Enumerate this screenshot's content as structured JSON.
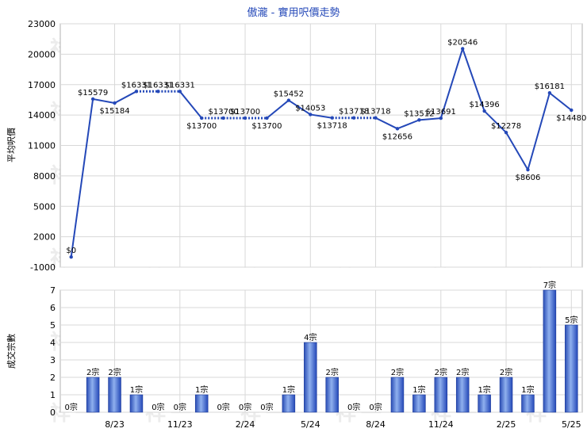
{
  "chart_data": [
    {
      "type": "line",
      "title": "傲瀧 - 實用呎價走勢",
      "ylabel": "平均呎價",
      "ylim": [
        -1000,
        23000
      ],
      "yticks": [
        -1000,
        2000,
        5000,
        8000,
        11000,
        14000,
        17000,
        20000,
        23000
      ],
      "grid": true,
      "series": [
        {
          "color": "#2448b8",
          "values": [
            0,
            15579,
            15184,
            16331,
            16331,
            16331,
            13700,
            13700,
            13700,
            13700,
            15452,
            14053,
            13718,
            13718,
            13718,
            12656,
            13512,
            13691,
            20546,
            14396,
            12278,
            8606,
            16181,
            14480
          ],
          "labels": [
            "$0",
            "$15579",
            "$15184",
            "$16331",
            "$16331",
            "$16331",
            "$13700",
            "$13700",
            "$13700",
            "$13700",
            "$15452",
            "$14053",
            "$13718",
            "$13718",
            "$13718",
            "$12656",
            "$13512",
            "$13691",
            "$20546",
            "$14396",
            "$12278",
            "$8606",
            "$16181",
            "$14480"
          ],
          "dotted": [
            false,
            false,
            false,
            true,
            true,
            false,
            true,
            true,
            true,
            false,
            false,
            false,
            true,
            true,
            false,
            false,
            false,
            false,
            false,
            false,
            false,
            false,
            false,
            false
          ]
        }
      ]
    },
    {
      "type": "bar",
      "ylabel": "成交宗數",
      "ylim": [
        0,
        7
      ],
      "yticks": [
        0,
        1,
        2,
        3,
        4,
        5,
        6,
        7
      ],
      "categories": [
        "8/23",
        "11/23",
        "2/24",
        "5/24",
        "8/24",
        "11/24",
        "2/25",
        "5/25"
      ],
      "values": [
        0,
        2,
        2,
        1,
        0,
        0,
        1,
        0,
        0,
        0,
        1,
        4,
        2,
        0,
        0,
        2,
        1,
        2,
        2,
        1,
        2,
        1,
        7,
        5
      ],
      "labels": [
        "0宗",
        "2宗",
        "2宗",
        "1宗",
        "0宗",
        "0宗",
        "1宗",
        "0宗",
        "0宗",
        "0宗",
        "1宗",
        "4宗",
        "2宗",
        "0宗",
        "0宗",
        "2宗",
        "1宗",
        "2宗",
        "2宗",
        "1宗",
        "2宗",
        "1宗",
        "7宗",
        "5宗"
      ],
      "color": "#2448b8"
    }
  ],
  "watermark": "祥一"
}
